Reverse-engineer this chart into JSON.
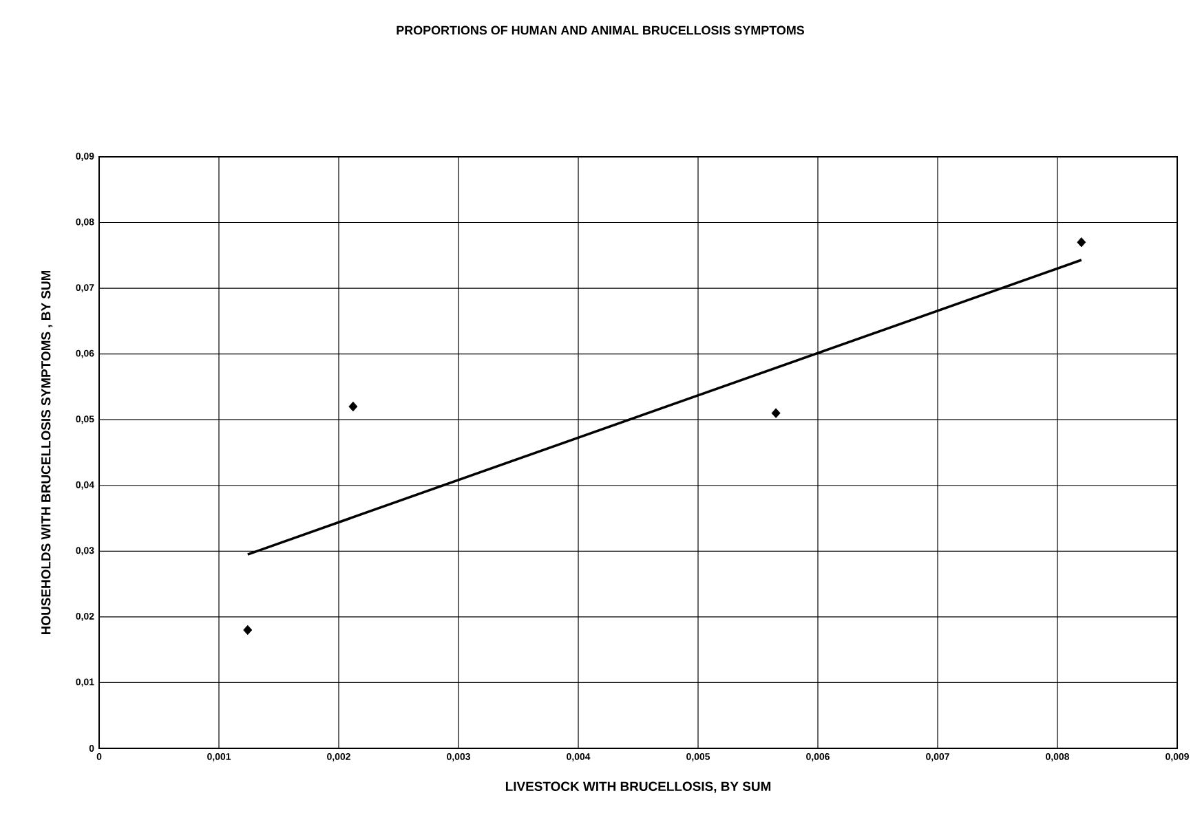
{
  "chart_data": {
    "type": "scatter",
    "title": "PROPORTIONS  OF HUMAN AND ANIMAL BRUCELLOSIS SYMPTOMS",
    "xlabel": "LIVESTOCK WITH BRUCELLOSIS, BY SUM",
    "ylabel": "HOUSEHOLDS WITH BRUCELLOSIS SYMPTOMS , BY SUM",
    "series": [
      {
        "color": "#000000",
        "marker": "diamond",
        "x": [
          0.00124,
          0.00212,
          0.00565,
          0.0082
        ],
        "values": [
          0.018,
          0.052,
          0.051,
          0.077
        ]
      },
      {
        "type": "line",
        "color": "#000000",
        "marker": "none",
        "line_style": "solid",
        "x": [
          0.00124,
          0.0082
        ],
        "values": [
          0.0295,
          0.0743
        ]
      }
    ],
    "xlim": [
      0,
      0.009
    ],
    "ylim": [
      0,
      0.09
    ],
    "xticks": [
      0,
      {
        "value": 0.001,
        "label": "0,001"
      },
      {
        "value": 0.002,
        "label": "0,002"
      },
      {
        "value": 0.003,
        "label": "0,003"
      },
      {
        "value": 0.004,
        "label": "0,004"
      },
      {
        "value": 0.005,
        "label": "0,005"
      },
      {
        "value": 0.006,
        "label": "0,006"
      },
      {
        "value": 0.007,
        "label": "0,007"
      },
      {
        "value": 0.008,
        "label": "0,008"
      },
      {
        "value": 0.009,
        "label": "0,009"
      }
    ],
    "yticks": [
      0,
      {
        "value": 0.01,
        "label": "0,01"
      },
      {
        "value": 0.02,
        "label": "0,02"
      },
      {
        "value": 0.03,
        "label": "0,03"
      },
      {
        "value": 0.04,
        "label": "0,04"
      },
      {
        "value": 0.05,
        "label": "0,05"
      },
      {
        "value": 0.06,
        "label": "0,06"
      },
      {
        "value": 0.07,
        "label": "0,07"
      },
      {
        "value": 0.08,
        "label": "0,08"
      },
      {
        "value": 0.09,
        "label": "0,09"
      }
    ],
    "grid": true
  }
}
